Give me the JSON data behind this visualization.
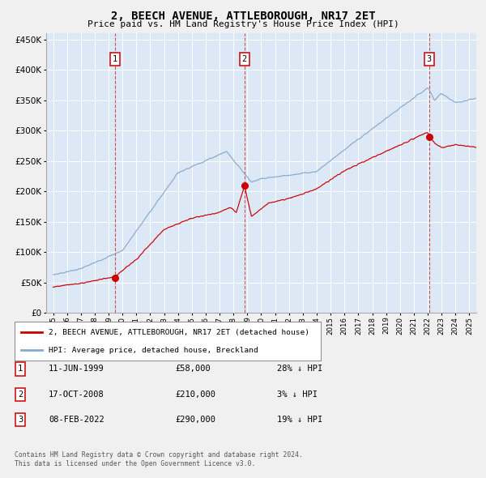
{
  "title": "2, BEECH AVENUE, ATTLEBOROUGH, NR17 2ET",
  "subtitle": "Price paid vs. HM Land Registry's House Price Index (HPI)",
  "legend_line1": "2, BEECH AVENUE, ATTLEBOROUGH, NR17 2ET (detached house)",
  "legend_line2": "HPI: Average price, detached house, Breckland",
  "footer1": "Contains HM Land Registry data © Crown copyright and database right 2024.",
  "footer2": "This data is licensed under the Open Government Licence v3.0.",
  "table": [
    {
      "num": "1",
      "date": "11-JUN-1999",
      "price": "£58,000",
      "pct": "28% ↓ HPI"
    },
    {
      "num": "2",
      "date": "17-OCT-2008",
      "price": "£210,000",
      "pct": "3% ↓ HPI"
    },
    {
      "num": "3",
      "date": "08-FEB-2022",
      "price": "£290,000",
      "pct": "19% ↓ HPI"
    }
  ],
  "purchases": [
    {
      "year": 1999.44,
      "price": 58000
    },
    {
      "year": 2008.79,
      "price": 210000
    },
    {
      "year": 2022.1,
      "price": 290000
    }
  ],
  "vlines": [
    1999.44,
    2008.79,
    2022.1
  ],
  "ylim": [
    0,
    460000
  ],
  "xlim": [
    1994.5,
    2025.5
  ],
  "yticks": [
    0,
    50000,
    100000,
    150000,
    200000,
    250000,
    300000,
    350000,
    400000,
    450000
  ],
  "plot_bg": "#dce8f5",
  "fig_bg": "#f0f0f0",
  "red_line_color": "#cc0000",
  "blue_line_color": "#88aacc",
  "grid_color": "#ffffff"
}
